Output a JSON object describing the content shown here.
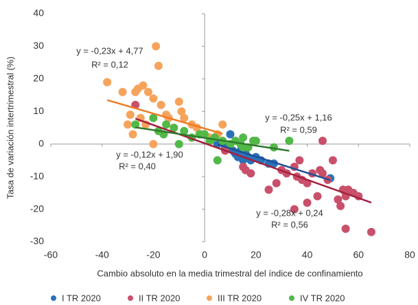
{
  "chart_data": {
    "type": "scatter",
    "x_label": "Cambio absoluto en la media trimestral del índice de confinamiento",
    "y_label": "Tasa de variación intertrimestral (%)",
    "xlim": [
      -60,
      80
    ],
    "xticks": [
      -60,
      -40,
      -20,
      0,
      20,
      40,
      60,
      80
    ],
    "ylim": [
      -30,
      40
    ],
    "yticks": [
      -30,
      -20,
      -10,
      0,
      10,
      20,
      30,
      40
    ],
    "legend": "bottom",
    "series": [
      {
        "name": "I TR 2020",
        "color": "#2a72b8",
        "trend_color": "#1f4e96",
        "x": [
          5,
          8,
          10,
          11,
          12,
          13,
          14,
          15,
          16,
          17,
          18,
          20,
          22,
          25,
          27,
          49
        ],
        "y": [
          0,
          -1,
          3,
          -2,
          -3,
          -4,
          -2,
          -5,
          -3,
          -4,
          -5,
          -4,
          -5,
          -6,
          -6,
          -10.5
        ],
        "equation": "y = -0,25x + 1,16",
        "r2_label": "R² = 0,59",
        "slope": -0.25,
        "intercept": 1.16,
        "r2": 0.59
      },
      {
        "name": "II TR 2020",
        "color": "#c9506a",
        "trend_color": "#a3203e",
        "x": [
          -27,
          8,
          15,
          16,
          18,
          25,
          28,
          30,
          32,
          35,
          36,
          37,
          38,
          40,
          42,
          40,
          44,
          45,
          46,
          46,
          48,
          50,
          52,
          53,
          54,
          55,
          55,
          56,
          58,
          60,
          65,
          35
        ],
        "y": [
          12,
          -2,
          -7,
          -8,
          -9,
          -14,
          -12,
          -8,
          -9,
          -7,
          -10,
          -5,
          -11,
          -12,
          -9,
          -18,
          -16,
          -8,
          1,
          -9,
          -11,
          -5,
          -17,
          -19,
          -14,
          -16,
          -26,
          -14,
          -15,
          -16,
          -27,
          -20
        ],
        "equation": "y = -0,28x + 0,24",
        "r2_label": "R² = 0,56",
        "slope": -0.28,
        "intercept": 0.24,
        "r2": 0.56
      },
      {
        "name": "III TR 2020",
        "color": "#f6a35c",
        "trend_color": "#ee7a22",
        "x": [
          -38,
          -32,
          -29,
          -27,
          -26,
          -25,
          -24,
          -22,
          -20,
          -19,
          -18,
          -17,
          -15,
          -14,
          -12,
          -10,
          -9,
          -8,
          -5,
          -3,
          -1,
          2,
          5,
          7,
          -30,
          -28,
          -20,
          -23
        ],
        "y": [
          19,
          16,
          9,
          16,
          17,
          8,
          18,
          16,
          14,
          30,
          24,
          12,
          9,
          8,
          5,
          13,
          10,
          8,
          6,
          5,
          3,
          2,
          3,
          6,
          6,
          3,
          0,
          6
        ],
        "equation": "y = -0,23x + 4,77",
        "r2_label": "R² = 0,12",
        "slope": -0.23,
        "intercept": 4.77,
        "r2": 0.12
      },
      {
        "name": "IV TR 2020",
        "color": "#52b848",
        "trend_color": "#2e7a2e",
        "x": [
          -27,
          -20,
          -18,
          -16,
          -15,
          -12,
          -10,
          -8,
          -5,
          -2,
          0,
          2,
          4,
          5,
          7,
          10,
          12,
          14,
          15,
          17,
          19,
          20,
          27,
          33,
          15
        ],
        "y": [
          6,
          8,
          4,
          3,
          6,
          5,
          0,
          4,
          2,
          3,
          3,
          1,
          2,
          -5,
          1,
          0,
          1,
          0,
          -1,
          -1,
          1,
          1,
          -1,
          1,
          2
        ],
        "equation": "y = -0,12x + 1,90",
        "r2_label": "R² = 0,40",
        "slope": -0.12,
        "intercept": 1.9,
        "r2": 0.4
      }
    ]
  }
}
